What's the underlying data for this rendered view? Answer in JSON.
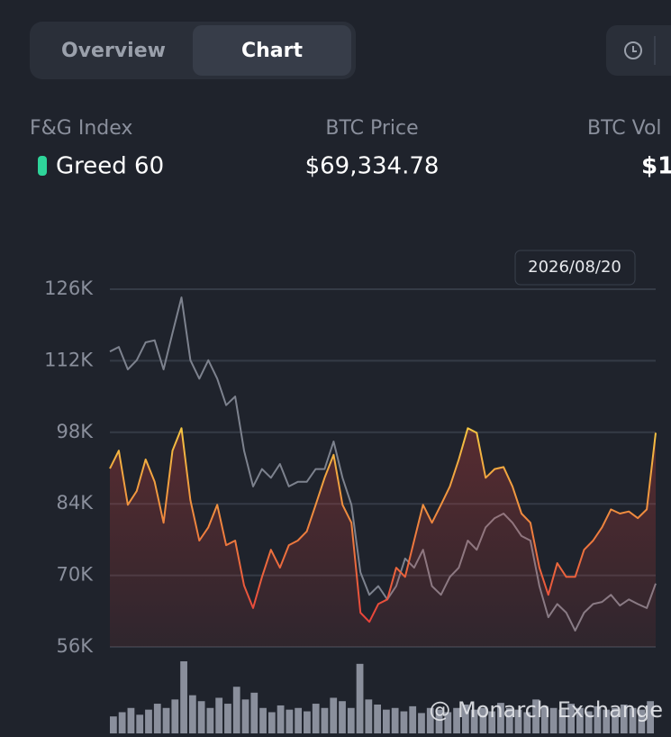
{
  "tabs": [
    "Overview",
    "Chart"
  ],
  "stats": [
    {
      "label": "F&G Index",
      "value": "Greed 60"
    },
    {
      "label": "BTC Price",
      "value": "$69,334.78"
    },
    {
      "label": "BTC Vol",
      "value": "$1"
    }
  ],
  "watermark": "@ Monarch Exchange",
  "chart_data": {
    "type": "line",
    "date_label": "2026/08/20",
    "ylim": [
      56000,
      126000
    ],
    "yticks": [
      {
        "value": 56000,
        "label": "56K"
      },
      {
        "value": 70000,
        "label": "70K"
      },
      {
        "value": 84000,
        "label": "84K"
      },
      {
        "value": 98000,
        "label": "98K"
      },
      {
        "value": 112000,
        "label": "112K"
      },
      {
        "value": 126000,
        "label": "126K"
      }
    ],
    "grid": true,
    "series": [
      {
        "color": "#7d828e",
        "values": [
          113800,
          114700,
          110300,
          112100,
          115600,
          116000,
          110300,
          117400,
          124400,
          112100,
          108500,
          112100,
          108500,
          103300,
          105000,
          94400,
          87400,
          90800,
          89100,
          91800,
          87400,
          88300,
          88300,
          90800,
          90800,
          96200,
          89100,
          83800,
          70600,
          66200,
          67900,
          65300,
          67900,
          73300,
          71500,
          75000,
          67900,
          66200,
          69700,
          71500,
          76800,
          75000,
          79400,
          81200,
          82100,
          80300,
          77700,
          76800,
          67900,
          61800,
          64400,
          62700,
          59200,
          62700,
          64400,
          64800,
          66200,
          64100,
          65300,
          64400,
          63600,
          68400
        ]
      },
      {
        "color": "#e8423b",
        "highlight_color": "#f5c842",
        "area": true,
        "values": [
          90900,
          94400,
          83800,
          86500,
          92700,
          88300,
          80300,
          94400,
          98800,
          84700,
          76800,
          79400,
          83800,
          75900,
          76800,
          68000,
          63600,
          69700,
          75000,
          71500,
          75900,
          76800,
          78600,
          83800,
          89100,
          93600,
          83800,
          80300,
          62700,
          60900,
          64400,
          65300,
          71500,
          69700,
          76800,
          83800,
          80300,
          83800,
          87400,
          92700,
          98800,
          97900,
          89100,
          90800,
          91200,
          87400,
          82100,
          80300,
          71500,
          66200,
          72400,
          69700,
          69700,
          75000,
          76800,
          79400,
          82900,
          82100,
          82500,
          81200,
          82900,
          97900
        ]
      }
    ],
    "volume": {
      "color": "#8a8f9c",
      "values": [
        20,
        25,
        30,
        22,
        28,
        35,
        30,
        40,
        85,
        45,
        38,
        30,
        42,
        35,
        55,
        40,
        48,
        30,
        25,
        33,
        28,
        30,
        26,
        35,
        30,
        42,
        38,
        30,
        82,
        40,
        34,
        28,
        30,
        26,
        32,
        24,
        30,
        28,
        25,
        30,
        34,
        28,
        30,
        26,
        36,
        30,
        28,
        25,
        40,
        32,
        30,
        28,
        35,
        30,
        26,
        32,
        28,
        30,
        34,
        30,
        28,
        38
      ]
    }
  }
}
